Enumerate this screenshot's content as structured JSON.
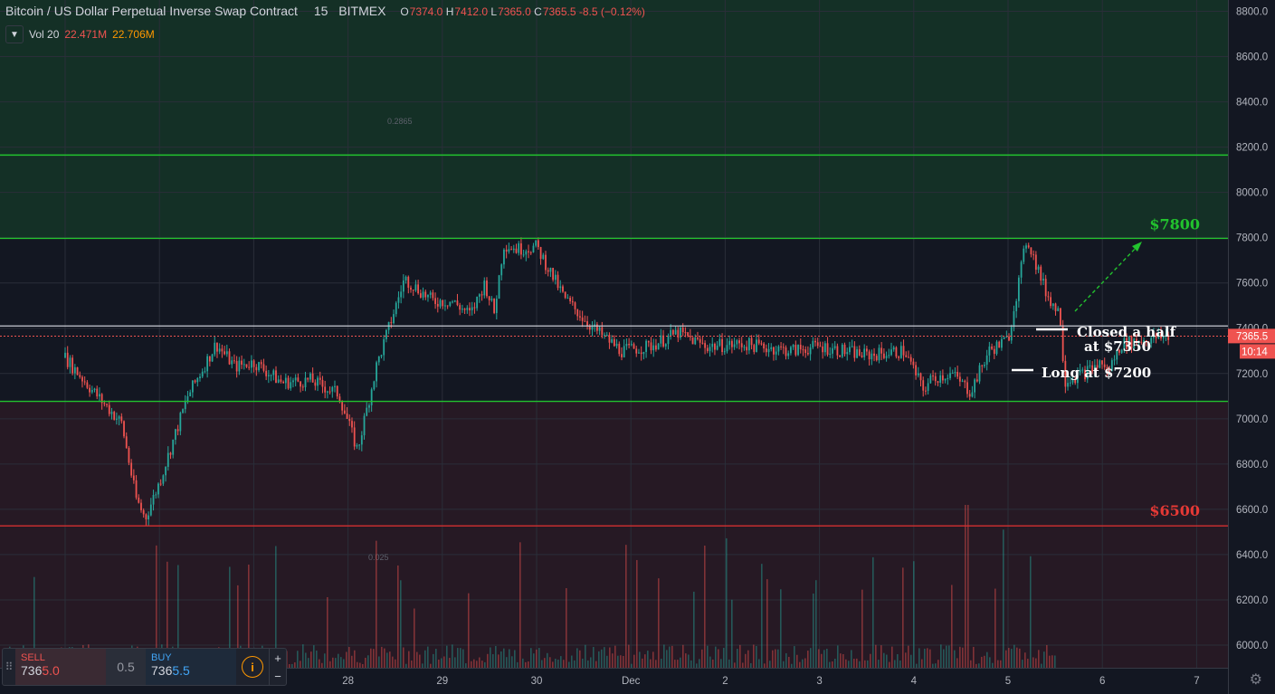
{
  "header": {
    "symbol": "Bitcoin / US Dollar Perpetual Inverse Swap Contract",
    "timeframe": "15",
    "exchange": "BITMEX",
    "open_label": "O",
    "open": "7374.0",
    "high_label": "H",
    "high": "7412.0",
    "low_label": "L",
    "low": "7365.0",
    "close_label": "C",
    "close": "7365.5",
    "change": "-8.5 (−0.12%)"
  },
  "volume_indicator": {
    "label": "Vol 20",
    "value1": "22.471M",
    "value2": "22.706M",
    "collapse_icon": "chevron-down-icon"
  },
  "trade_panel": {
    "sell_label": "SELL",
    "sell_price_prefix": "736",
    "sell_price_suffix": "5.0",
    "spread": "0.5",
    "buy_label": "BUY",
    "buy_price_prefix": "736",
    "buy_price_suffix": "5.5",
    "info_icon": "info-icon",
    "plus": "+",
    "minus": "−"
  },
  "price_axis": {
    "labels": [
      "8800.0",
      "8600.0",
      "8400.0",
      "8200.0",
      "8000.0",
      "7800.0",
      "7600.0",
      "7400.0",
      "7200.0",
      "7000.0",
      "6800.0",
      "6600.0",
      "6400.0",
      "6200.0",
      "6000.0"
    ],
    "current_price": "7365.5",
    "countdown": "10:14"
  },
  "time_axis": {
    "labels": [
      "28",
      "29",
      "30",
      "Dec",
      "2",
      "3",
      "4",
      "5",
      "6",
      "7"
    ]
  },
  "annotations": {
    "target_high": "$7800",
    "target_low": "$6500",
    "closed_half_line1": "Closed a half",
    "closed_half_line2": "at $7350",
    "long_entry": "Long at $7200",
    "faint_top": "0.2865",
    "faint_bottom": "0.025"
  },
  "colors": {
    "background": "#131722",
    "zone_green": "#163a28",
    "zone_red": "#2e1b26",
    "line_green": "#22c32e",
    "line_red": "#d32f2f",
    "candle_up": "#26a69a",
    "candle_down": "#ef5350",
    "label_green": "#22c32e",
    "label_red": "#e53935",
    "price_tag": "#ef5350"
  },
  "chart_data": {
    "type": "candlestick",
    "title": "Bitcoin / US Dollar Perpetual Inverse Swap Contract",
    "timeframe": "15",
    "x_ticks": [
      "28",
      "29",
      "30",
      "Dec",
      "2",
      "3",
      "4",
      "5",
      "6",
      "7"
    ],
    "ylim": [
      5900,
      8850
    ],
    "y_ticks": [
      8800,
      8600,
      8400,
      8200,
      8000,
      7800,
      7600,
      7400,
      7200,
      7000,
      6800,
      6600,
      6400,
      6200,
      6000
    ],
    "grid": true,
    "last_price": 7365.5,
    "ohlc_last": {
      "open": 7374.0,
      "high": 7412.0,
      "low": 7365.0,
      "close": 7365.5
    },
    "horizontal_levels": [
      {
        "price": 8165,
        "color": "green"
      },
      {
        "price": 7797,
        "color": "green",
        "label": "$7800"
      },
      {
        "price": 7410,
        "color": "white"
      },
      {
        "price": 7365,
        "color": "red-dotted"
      },
      {
        "price": 7077,
        "color": "green"
      },
      {
        "price": 6527,
        "color": "red",
        "label": "$6500"
      }
    ],
    "zones": [
      {
        "from": 7797,
        "to": 8850,
        "color": "green"
      },
      {
        "from": 5900,
        "to": 7077,
        "color": "red"
      }
    ],
    "price_path": {
      "x": [
        0.0,
        0.3,
        0.6,
        0.75,
        0.85,
        1.0,
        1.3,
        1.6,
        1.8,
        2.0,
        2.3,
        2.6,
        2.9,
        3.1,
        3.3,
        3.6,
        3.9,
        4.1,
        4.3,
        4.45,
        4.55,
        4.65,
        4.8,
        5.0,
        5.3,
        5.6,
        5.9,
        6.2,
        6.5,
        6.8,
        7.2,
        7.7,
        8.0,
        8.5,
        8.9,
        9.1,
        9.2,
        9.4,
        9.6,
        9.8,
        10.0,
        10.2,
        10.4,
        10.5,
        10.55,
        10.6,
        10.8,
        11.0,
        11.05,
        11.2,
        11.45,
        11.7
      ],
      "y": [
        7270,
        7120,
        6980,
        6650,
        6560,
        6720,
        7100,
        7330,
        7230,
        7250,
        7160,
        7170,
        7110,
        6860,
        7230,
        7620,
        7520,
        7520,
        7460,
        7600,
        7470,
        7770,
        7750,
        7760,
        7530,
        7400,
        7300,
        7320,
        7380,
        7320,
        7330,
        7300,
        7320,
        7280,
        7300,
        7130,
        7180,
        7200,
        7120,
        7300,
        7350,
        7800,
        7560,
        7490,
        7470,
        7170,
        7200,
        7250,
        7200,
        7330,
        7350,
        7366
      ]
    },
    "volume": {
      "label": "Vol 20",
      "values": [
        "22.471M",
        "22.706M"
      ]
    },
    "annotations": [
      {
        "text": "Closed a half at $7350",
        "price": 7350
      },
      {
        "text": "Long at $7200",
        "price": 7200
      }
    ]
  }
}
